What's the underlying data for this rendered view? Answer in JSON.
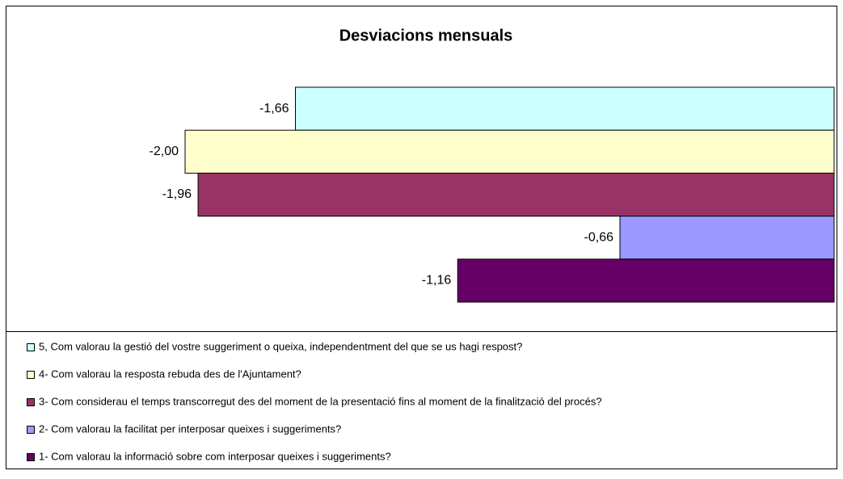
{
  "chart_data": {
    "type": "bar",
    "orientation": "horizontal",
    "title": "Desviacions mensuals",
    "xlim": [
      -2,
      0
    ],
    "series": [
      {
        "name": "5, Com valorau la gestió del vostre suggeriment o queixa, independentment del que se us hagi respost?",
        "color": "#ccffff",
        "values": [
          -1.66
        ],
        "value_labels": [
          "-1,66"
        ]
      },
      {
        "name": "4- Com valorau la resposta rebuda des de l'Ajuntament?",
        "color": "#ffffcc",
        "values": [
          -2.0
        ],
        "value_labels": [
          "-2,00"
        ]
      },
      {
        "name": "3- Com considerau el temps transcorregut des del moment de la presentació fins al moment de la finalització del procés?",
        "color": "#993366",
        "values": [
          -1.96
        ],
        "value_labels": [
          "-1,96"
        ]
      },
      {
        "name": "2- Com valorau la facilitat per interposar queixes i suggeriments?",
        "color": "#9999ff",
        "values": [
          -0.66
        ],
        "value_labels": [
          "-0,66"
        ]
      },
      {
        "name": "1- Com valorau la informació sobre com interposar queixes i suggeriments?",
        "color": "#660066",
        "values": [
          -1.16
        ],
        "value_labels": [
          "-1,16"
        ]
      }
    ]
  }
}
